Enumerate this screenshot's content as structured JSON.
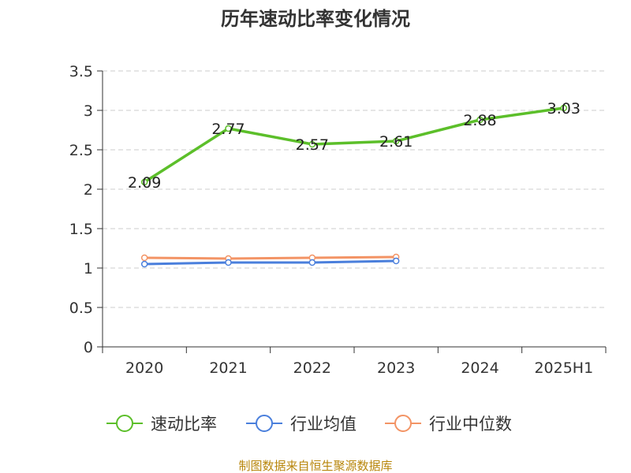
{
  "chart_data": {
    "type": "line",
    "title": "历年速动比率变化情况",
    "xlabel": "",
    "ylabel": "",
    "categories": [
      "2020",
      "2021",
      "2022",
      "2023",
      "2024",
      "2025H1"
    ],
    "ylim": [
      0,
      3.5
    ],
    "yticks": [
      "0",
      "0.5",
      "1",
      "1.5",
      "2",
      "2.5",
      "3",
      "3.5"
    ],
    "grid": true,
    "legend_position": "bottom",
    "series": [
      {
        "name": "速动比率",
        "color": "#5cbf2a",
        "values": [
          2.09,
          2.77,
          2.57,
          2.61,
          2.88,
          3.03
        ],
        "labels": [
          "2.09",
          "2.77",
          "2.57",
          "2.61",
          "2.88",
          "3.03"
        ]
      },
      {
        "name": "行业均值",
        "color": "#4a7fdc",
        "values": [
          1.05,
          1.07,
          1.07,
          1.09,
          null,
          null
        ]
      },
      {
        "name": "行业中位数",
        "color": "#f39465",
        "values": [
          1.13,
          1.12,
          1.13,
          1.14,
          null,
          null
        ]
      }
    ]
  },
  "source": "制图数据来自恒生聚源数据库"
}
